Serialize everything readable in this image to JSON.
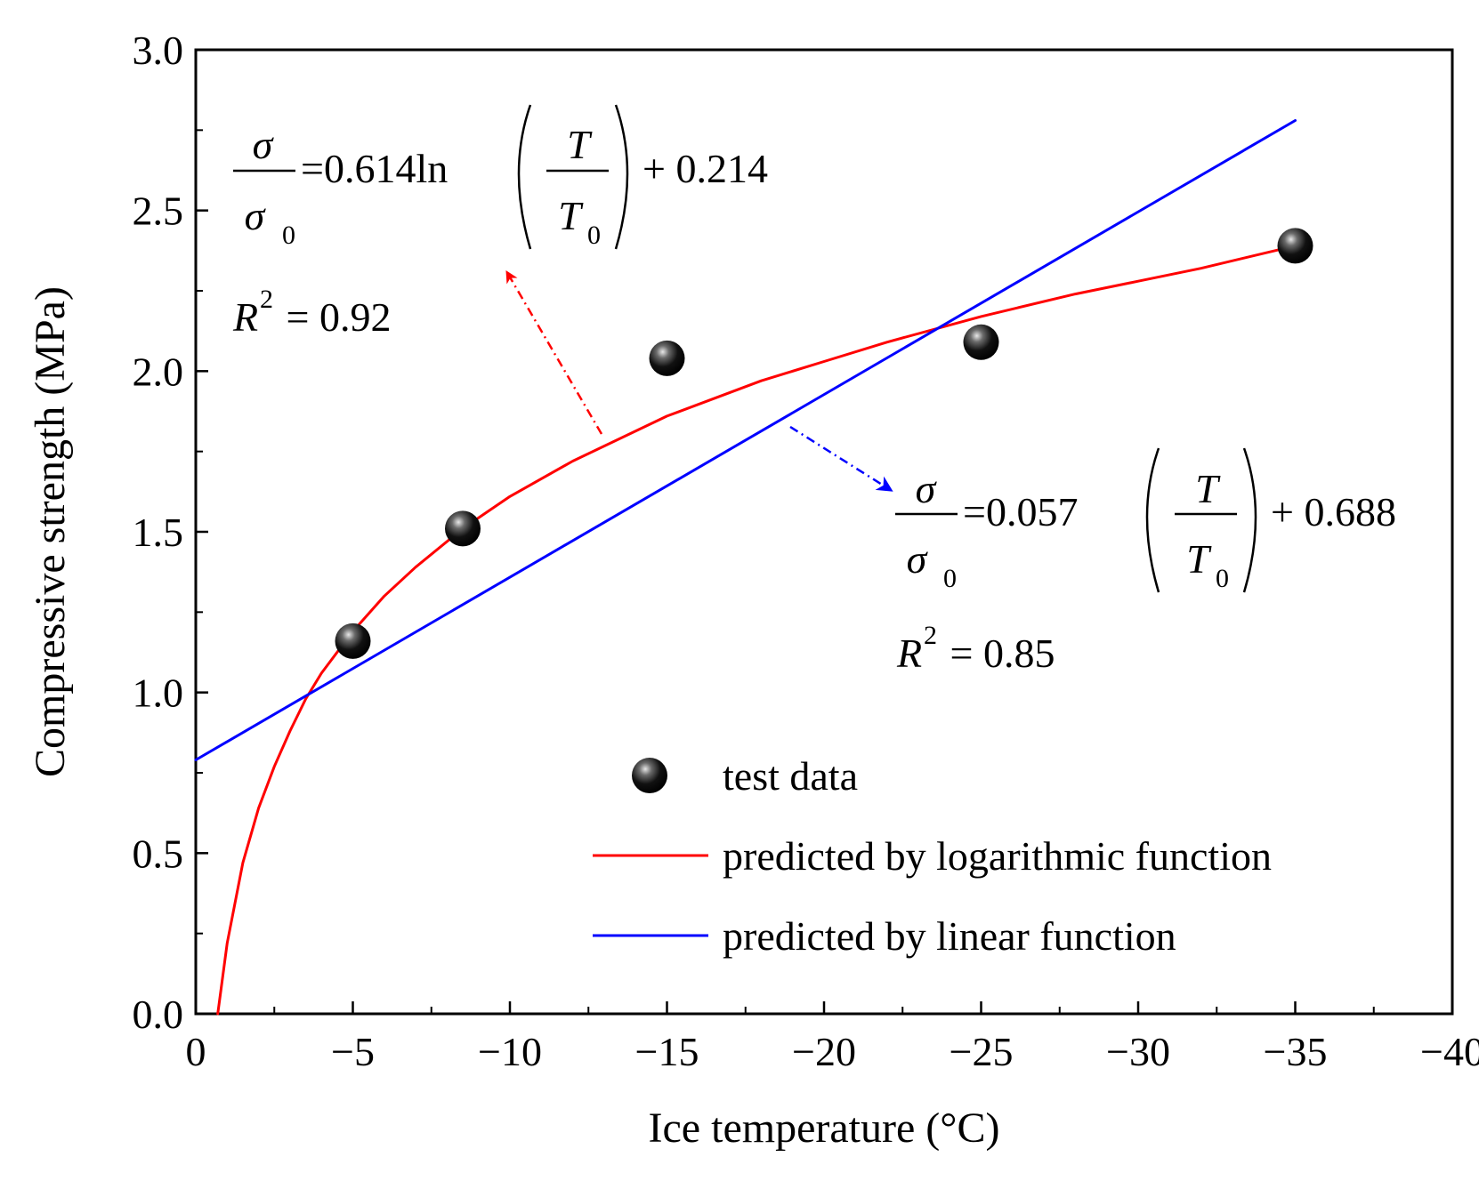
{
  "chart_data": {
    "type": "scatter",
    "xlabel": "Ice temperature (°C)",
    "ylabel": "Compressive strength (MPa)",
    "xlim": [
      0,
      -40
    ],
    "ylim": [
      0.0,
      3.0
    ],
    "x_ticks": [
      "0",
      "−5",
      "−10",
      "−15",
      "−20",
      "−25",
      "−30",
      "−35",
      "−40"
    ],
    "y_ticks": [
      "0.0",
      "0.5",
      "1.0",
      "1.5",
      "2.0",
      "2.5",
      "3.0"
    ],
    "series": [
      {
        "name": "test data",
        "kind": "points",
        "color": "#000000",
        "x": [
          -5,
          -8.5,
          -15,
          -25,
          -35
        ],
        "y": [
          1.16,
          1.51,
          2.04,
          2.09,
          2.39
        ]
      },
      {
        "name": "predicted by logarithmic function",
        "kind": "line",
        "color": "#ff0000",
        "x": [
          -0.7,
          -1,
          -1.5,
          -2,
          -2.5,
          -3,
          -3.5,
          -4,
          -5,
          -6,
          -7,
          -8.5,
          -10,
          -12,
          -15,
          -18,
          -20,
          -22,
          -25,
          -28,
          -30,
          -32,
          -35
        ],
        "y": [
          0.0,
          0.22,
          0.47,
          0.64,
          0.77,
          0.88,
          0.98,
          1.06,
          1.19,
          1.3,
          1.39,
          1.51,
          1.61,
          1.72,
          1.86,
          1.97,
          2.03,
          2.09,
          2.17,
          2.24,
          2.28,
          2.32,
          2.39
        ]
      },
      {
        "name": "predicted by linear function",
        "kind": "line",
        "color": "#0000ff",
        "x": [
          0,
          -35
        ],
        "y": [
          0.79,
          2.78
        ]
      }
    ],
    "annotations": {
      "log_eq": {
        "lhs_num": "σ",
        "lhs_den": "σ",
        "lhs_den_sub": "0",
        "rhs_prefix": "=0.614ln",
        "frac_num": "T",
        "frac_den": "T",
        "frac_den_sub": "0",
        "rhs_suffix": "+ 0.214",
        "r2_label": "R",
        "r2_sup": "2",
        "r2_value": " = 0.92"
      },
      "lin_eq": {
        "lhs_num": "σ",
        "lhs_den": "σ",
        "lhs_den_sub": "0",
        "rhs_prefix": "=0.057",
        "frac_num": "T",
        "frac_den": "T",
        "frac_den_sub": "0",
        "rhs_suffix": "+ 0.688",
        "r2_label": "R",
        "r2_sup": "2",
        "r2_value": " = 0.85"
      }
    },
    "legend": {
      "placement": "bottom-right",
      "entries": [
        "test data",
        "predicted by logarithmic function",
        "predicted by linear function"
      ]
    },
    "grid": false
  }
}
